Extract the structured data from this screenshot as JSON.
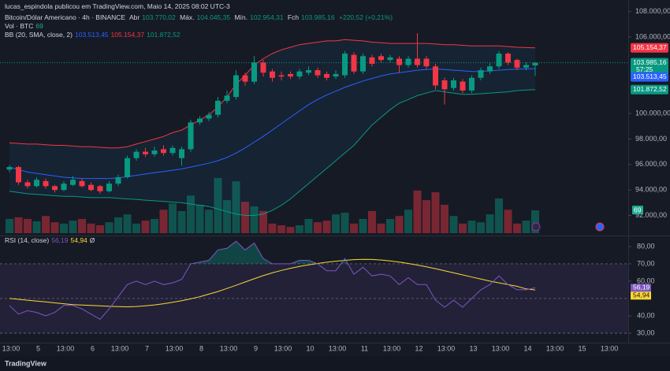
{
  "header": {
    "byline": "lucas_espindola publicou em TradingView.com, Maio 14, 2025 08:02 UTC-3"
  },
  "footer": {
    "brand": "TradingView"
  },
  "legend": {
    "symbol": "Bitcoin/Dólar Americano · 4h · BINANCE",
    "open_label": "Abr",
    "open": "103.770,02",
    "high_label": "Máx.",
    "high": "104.045,35",
    "low_label": "Mín.",
    "low": "102.954,31",
    "close_label": "Fch",
    "close": "103.985,16",
    "change": "+220,52 (+0,21%)",
    "volume_label": "Vol · BTC",
    "volume": "69",
    "bb_label": "BB (20, SMA, close, 2)",
    "bb_basis": "103.513,45",
    "bb_upper": "105.154,37",
    "bb_lower": "101.872,52",
    "countdown": "57:25",
    "rsi_label": "RSI (14, close)",
    "rsi": "56,19",
    "rsi_ma": "54,94",
    "rsi_extra": "Ø"
  },
  "time_axis": [
    "13:00",
    "5",
    "13:00",
    "6",
    "13:00",
    "7",
    "13:00",
    "8",
    "13:00",
    "9",
    "13:00",
    "10",
    "13:00",
    "11",
    "13:00",
    "12",
    "13:00",
    "13",
    "13:00",
    "14",
    "13:00",
    "15",
    "13:00"
  ],
  "chart_data": [
    {
      "type": "candlestick",
      "up_color": "#089981",
      "down_color": "#f23645",
      "bb_upper_color": "#f23645",
      "bb_basis_color": "#2962ff",
      "bb_lower_color": "#089981",
      "ylim": [
        90550,
        108905
      ],
      "yticks": [
        {
          "value": 92000,
          "label": "92.000,00"
        },
        {
          "value": 94000,
          "label": "94.000,00"
        },
        {
          "value": 96000,
          "label": "96.000,00"
        },
        {
          "value": 98000,
          "label": "98.000,00"
        },
        {
          "value": 100000,
          "label": "100.000,00"
        },
        {
          "value": 106000,
          "label": "106.000,00"
        },
        {
          "value": 108000,
          "label": "108.000,00"
        }
      ],
      "open": [
        95600,
        95800,
        94600,
        94300,
        94700,
        94300,
        94000,
        94400,
        94700,
        94400,
        94300,
        93900,
        94500,
        95000,
        96500,
        97000,
        96800,
        97200,
        96900,
        96500,
        97200,
        99300,
        99600,
        99900,
        101000,
        101300,
        103000,
        102500,
        104000,
        103300,
        103000,
        103100,
        102900,
        103200,
        103400,
        103100,
        102900,
        103000,
        104600,
        103300,
        104400,
        104500,
        104200,
        104300,
        103800,
        104300,
        104300,
        103700,
        102600,
        102000,
        102500,
        101800,
        102800,
        103300,
        103700,
        104700,
        104200,
        103600,
        103770.02
      ],
      "high": [
        95950,
        95900,
        94800,
        95000,
        94900,
        94400,
        94700,
        95100,
        94900,
        94600,
        94400,
        94700,
        95200,
        96700,
        97200,
        97300,
        97400,
        97500,
        97500,
        97400,
        99500,
        99800,
        100100,
        101300,
        101800,
        103400,
        103200,
        104500,
        104200,
        103500,
        103300,
        103300,
        103500,
        103700,
        103600,
        103300,
        103400,
        104900,
        104800,
        104700,
        104600,
        104700,
        104600,
        104500,
        104500,
        106300,
        104500,
        103900,
        102800,
        102800,
        102700,
        103000,
        103600,
        104000,
        104900,
        104800,
        104300,
        104000,
        104045.35
      ],
      "low": [
        95400,
        94400,
        94100,
        94200,
        94100,
        93800,
        93900,
        94300,
        94200,
        93900,
        93700,
        93800,
        94300,
        94900,
        96300,
        96600,
        96600,
        96700,
        96700,
        95900,
        97000,
        99100,
        99400,
        99700,
        100800,
        101100,
        102200,
        102300,
        102900,
        102500,
        102600,
        102700,
        102700,
        103000,
        102800,
        102600,
        102700,
        102800,
        103100,
        103100,
        103700,
        104000,
        104000,
        103200,
        103600,
        103600,
        103500,
        101900,
        100700,
        101800,
        101600,
        101600,
        102600,
        103100,
        103500,
        103800,
        103400,
        103400,
        102954.31
      ],
      "close": [
        95800,
        94600,
        94300,
        94800,
        94300,
        94000,
        94500,
        94800,
        94300,
        94000,
        93900,
        94500,
        95000,
        96500,
        97000,
        96800,
        97100,
        96900,
        97300,
        97200,
        99300,
        99600,
        99900,
        101000,
        101400,
        103000,
        102500,
        104000,
        103200,
        102800,
        102900,
        102900,
        103300,
        103400,
        103000,
        102800,
        103100,
        104700,
        103300,
        104500,
        103900,
        104200,
        104400,
        103800,
        104300,
        103800,
        103700,
        102200,
        101900,
        102600,
        101800,
        102800,
        103400,
        103700,
        104700,
        104000,
        103600,
        103800,
        103985.16
      ],
      "volume": [
        43,
        48,
        43,
        36,
        52,
        33,
        29,
        38,
        43,
        29,
        24,
        33,
        48,
        57,
        29,
        38,
        43,
        71,
        90,
        67,
        114,
        86,
        71,
        167,
        100,
        157,
        95,
        81,
        67,
        29,
        24,
        19,
        24,
        43,
        33,
        38,
        57,
        62,
        29,
        43,
        67,
        29,
        43,
        52,
        71,
        129,
        100,
        124,
        86,
        52,
        29,
        38,
        33,
        57,
        105,
        71,
        29,
        38,
        69
      ],
      "bb_upper": [
        97700,
        97650,
        97600,
        97600,
        97550,
        97500,
        97500,
        97450,
        97400,
        97400,
        97350,
        97300,
        97300,
        97400,
        97600,
        97800,
        98000,
        98200,
        98500,
        98700,
        99100,
        99500,
        99900,
        100500,
        101300,
        102300,
        103000,
        103800,
        104300,
        104700,
        105000,
        105200,
        105400,
        105500,
        105600,
        105700,
        105700,
        105800,
        105750,
        105700,
        105600,
        105550,
        105500,
        105500,
        105500,
        105500,
        105500,
        105450,
        105400,
        105400,
        105350,
        105300,
        105300,
        105300,
        105300,
        105250,
        105200,
        105170,
        105154.37
      ],
      "bb_basis": [
        95800,
        95600,
        95400,
        95300,
        95200,
        95100,
        95000,
        94950,
        94900,
        94900,
        94900,
        94900,
        94950,
        95050,
        95150,
        95250,
        95350,
        95450,
        95550,
        95650,
        95800,
        95950,
        96100,
        96300,
        96550,
        96900,
        97300,
        97750,
        98200,
        98700,
        99200,
        99700,
        100200,
        100700,
        101100,
        101450,
        101750,
        102050,
        102300,
        102550,
        102750,
        102950,
        103100,
        103200,
        103300,
        103400,
        103450,
        103500,
        103450,
        103400,
        103350,
        103300,
        103300,
        103350,
        103400,
        103450,
        103480,
        103500,
        103513.45
      ],
      "bb_lower": [
        93900,
        93800,
        93700,
        93650,
        93600,
        93550,
        93500,
        93500,
        93450,
        93400,
        93400,
        93400,
        93350,
        93300,
        93250,
        93200,
        93150,
        93100,
        93050,
        93000,
        92900,
        92800,
        92700,
        92500,
        92300,
        92100,
        92000,
        92000,
        92100,
        92400,
        92800,
        93300,
        93900,
        94500,
        95100,
        95700,
        96300,
        96900,
        97500,
        98300,
        99100,
        99700,
        100300,
        100800,
        101100,
        101400,
        101600,
        101800,
        101700,
        101600,
        101500,
        101500,
        101550,
        101600,
        101650,
        101700,
        101800,
        101850,
        101872.52
      ]
    },
    {
      "type": "line",
      "rsi_color": "#7e57c2",
      "rsi_ma_color": "#fdd835",
      "ylim": [
        25.9,
        84.5
      ],
      "yticks": [
        {
          "value": 30,
          "label": "30,00"
        },
        {
          "value": 40,
          "label": "40,00"
        },
        {
          "value": 60,
          "label": "60,00"
        },
        {
          "value": 70,
          "label": "70,00"
        },
        {
          "value": 80,
          "label": "80,00"
        }
      ],
      "levels": [
        70,
        50,
        30
      ],
      "rsi": [
        46,
        41,
        43,
        42,
        40,
        42,
        46,
        46,
        44,
        41,
        38,
        44,
        51,
        58,
        60,
        58,
        60,
        58,
        59,
        61,
        70,
        71,
        72,
        78,
        79,
        83,
        78,
        82,
        73,
        70,
        70,
        70,
        72,
        72,
        70,
        66,
        66,
        73,
        64,
        68,
        63,
        64,
        63,
        58,
        62,
        58,
        58,
        49,
        45,
        49,
        45,
        50,
        55,
        58,
        63,
        58,
        55,
        55,
        56.19
      ],
      "rsi_ma": [
        50,
        49.5,
        49,
        48.5,
        48,
        47.5,
        47,
        46.5,
        46.2,
        46,
        45.8,
        45.5,
        45.3,
        45.2,
        45.4,
        45.8,
        46.3,
        47,
        47.8,
        48.7,
        49.8,
        51,
        52.5,
        54,
        55.8,
        57.6,
        59.5,
        61.4,
        63.2,
        64.8,
        66.2,
        67.4,
        68.5,
        69.4,
        70.2,
        70.9,
        71.5,
        72,
        72.4,
        72.6,
        72.5,
        72.2,
        71.7,
        71,
        70.2,
        69.3,
        68.3,
        67.2,
        66,
        64.8,
        63.6,
        62.4,
        61.2,
        60,
        59,
        58,
        57,
        55.5,
        54.94
      ]
    }
  ]
}
